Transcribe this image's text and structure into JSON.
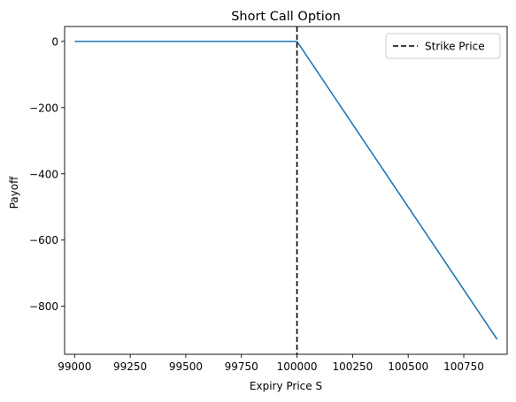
{
  "chart_data": {
    "type": "line",
    "title": "Short Call Option",
    "xlabel": "Expiry Price S",
    "ylabel": "Payoff",
    "xlim": [
      98955,
      100945
    ],
    "ylim": [
      -945,
      45
    ],
    "xticks": [
      {
        "value": 99000,
        "label": "99000"
      },
      {
        "value": 99250,
        "label": "99250"
      },
      {
        "value": 99500,
        "label": "99500"
      },
      {
        "value": 99750,
        "label": "99750"
      },
      {
        "value": 100000,
        "label": "100000"
      },
      {
        "value": 100250,
        "label": "100250"
      },
      {
        "value": 100500,
        "label": "100500"
      },
      {
        "value": 100750,
        "label": "100750"
      }
    ],
    "yticks": [
      {
        "value": 0,
        "label": "0"
      },
      {
        "value": -200,
        "label": "−200"
      },
      {
        "value": -400,
        "label": "−400"
      },
      {
        "value": -600,
        "label": "−600"
      },
      {
        "value": -800,
        "label": "−800"
      }
    ],
    "series": [
      {
        "color": "#1f77b4",
        "style": "solid",
        "x": [
          99000,
          100000,
          100900
        ],
        "y": [
          0,
          0,
          -900
        ]
      }
    ],
    "vlines": [
      {
        "name": "Strike Price",
        "x": 100000,
        "color": "#000000",
        "style": "dashed"
      }
    ],
    "legend": {
      "position": "top-right",
      "entries": [
        {
          "label": "Strike Price",
          "color": "#000000",
          "style": "dashed"
        }
      ]
    },
    "grid": false
  }
}
